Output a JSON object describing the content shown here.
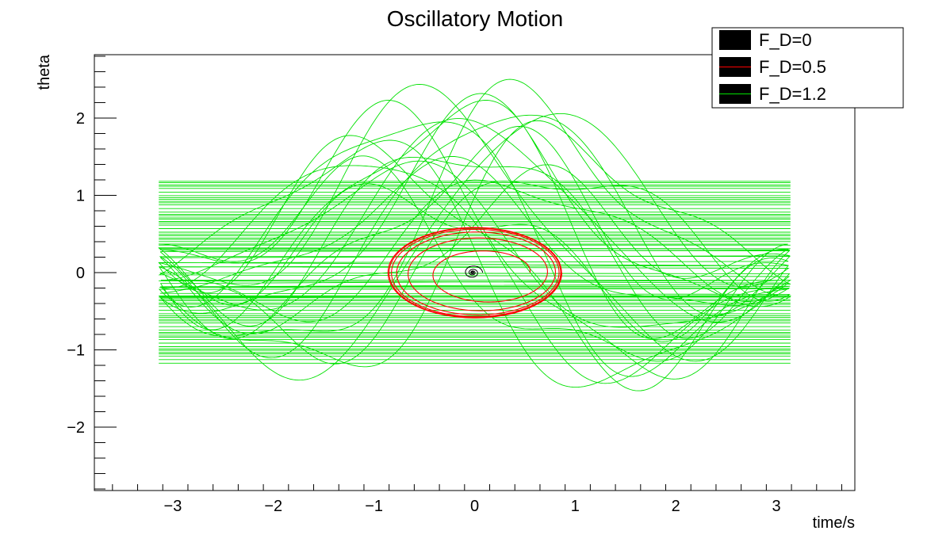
{
  "chart_data": {
    "type": "line",
    "title": "Oscillatory Motion",
    "xlabel": "time/s",
    "ylabel": "theta",
    "xlim": [
      -3.78,
      3.78
    ],
    "ylim": [
      -2.82,
      2.82
    ],
    "x_ticks": [
      -3,
      -2,
      -1,
      0,
      1,
      2,
      3
    ],
    "x_tick_labels": [
      "−3",
      "−2",
      "−1",
      "0",
      "1",
      "2",
      "3"
    ],
    "y_ticks": [
      -2,
      -1,
      0,
      1,
      2
    ],
    "y_tick_labels": [
      "−2",
      "−1",
      "0",
      "1",
      "2"
    ],
    "grid": false,
    "legend_position": "top-right",
    "series": [
      {
        "name": "F_D=0",
        "color": "#000000",
        "shape": "decaying-spiral",
        "center": [
          -0.02,
          0.0
        ],
        "amplitude": 0.1
      },
      {
        "name": "F_D=0.5",
        "color": "#ff0000",
        "shape": "limit-cycle",
        "x_amplitude": 0.87,
        "y_amplitude": 0.59
      },
      {
        "name": "F_D=1.2",
        "color": "#00e000",
        "shape": "chaotic-wrapped",
        "x_range": [
          -3.14,
          3.14
        ],
        "y_range": [
          -2.36,
          2.36
        ]
      }
    ]
  }
}
